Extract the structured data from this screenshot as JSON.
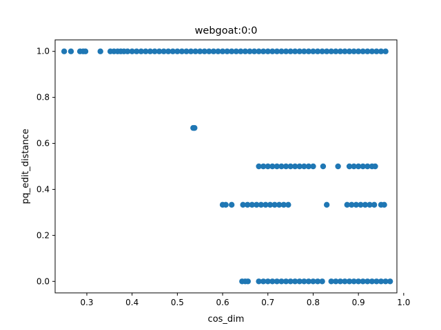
{
  "chart_data": {
    "type": "scatter",
    "title": "webgoat:0:0",
    "xlabel": "cos_dim",
    "ylabel": "pq_edit_distance",
    "xlim": [
      0.23,
      0.985
    ],
    "ylim": [
      -0.05,
      1.05
    ],
    "xticks": [
      "0.3",
      "0.4",
      "0.5",
      "0.6",
      "0.7",
      "0.8",
      "0.9",
      "1.0"
    ],
    "yticks": [
      "0.0",
      "0.2",
      "0.4",
      "0.6",
      "0.8",
      "1.0"
    ],
    "grid": false,
    "legend": "none",
    "marker_color": "#1f77b4",
    "series": [
      {
        "points": [
          [
            0.25,
            1.0
          ],
          [
            0.265,
            1.0
          ],
          [
            0.285,
            1.0
          ],
          [
            0.292,
            1.0
          ],
          [
            0.297,
            1.0
          ],
          [
            0.33,
            1.0
          ],
          [
            0.352,
            1.0
          ],
          [
            0.36,
            1.0
          ],
          [
            0.368,
            1.0
          ],
          [
            0.375,
            1.0
          ],
          [
            0.382,
            1.0
          ],
          [
            0.39,
            1.0
          ],
          [
            0.4,
            1.0
          ],
          [
            0.41,
            1.0
          ],
          [
            0.42,
            1.0
          ],
          [
            0.43,
            1.0
          ],
          [
            0.44,
            1.0
          ],
          [
            0.45,
            1.0
          ],
          [
            0.46,
            1.0
          ],
          [
            0.47,
            1.0
          ],
          [
            0.48,
            1.0
          ],
          [
            0.49,
            1.0
          ],
          [
            0.5,
            1.0
          ],
          [
            0.51,
            1.0
          ],
          [
            0.52,
            1.0
          ],
          [
            0.53,
            1.0
          ],
          [
            0.54,
            1.0
          ],
          [
            0.55,
            1.0
          ],
          [
            0.56,
            1.0
          ],
          [
            0.57,
            1.0
          ],
          [
            0.58,
            1.0
          ],
          [
            0.59,
            1.0
          ],
          [
            0.6,
            1.0
          ],
          [
            0.61,
            1.0
          ],
          [
            0.62,
            1.0
          ],
          [
            0.63,
            1.0
          ],
          [
            0.64,
            1.0
          ],
          [
            0.65,
            1.0
          ],
          [
            0.66,
            1.0
          ],
          [
            0.67,
            1.0
          ],
          [
            0.68,
            1.0
          ],
          [
            0.69,
            1.0
          ],
          [
            0.7,
            1.0
          ],
          [
            0.71,
            1.0
          ],
          [
            0.72,
            1.0
          ],
          [
            0.73,
            1.0
          ],
          [
            0.74,
            1.0
          ],
          [
            0.75,
            1.0
          ],
          [
            0.76,
            1.0
          ],
          [
            0.77,
            1.0
          ],
          [
            0.78,
            1.0
          ],
          [
            0.79,
            1.0
          ],
          [
            0.8,
            1.0
          ],
          [
            0.81,
            1.0
          ],
          [
            0.82,
            1.0
          ],
          [
            0.83,
            1.0
          ],
          [
            0.84,
            1.0
          ],
          [
            0.85,
            1.0
          ],
          [
            0.86,
            1.0
          ],
          [
            0.87,
            1.0
          ],
          [
            0.88,
            1.0
          ],
          [
            0.89,
            1.0
          ],
          [
            0.9,
            1.0
          ],
          [
            0.91,
            1.0
          ],
          [
            0.92,
            1.0
          ],
          [
            0.93,
            1.0
          ],
          [
            0.94,
            1.0
          ],
          [
            0.95,
            1.0
          ],
          [
            0.96,
            1.0
          ],
          [
            0.535,
            0.667
          ],
          [
            0.538,
            0.667
          ],
          [
            0.68,
            0.5
          ],
          [
            0.69,
            0.5
          ],
          [
            0.7,
            0.5
          ],
          [
            0.71,
            0.5
          ],
          [
            0.72,
            0.5
          ],
          [
            0.73,
            0.5
          ],
          [
            0.74,
            0.5
          ],
          [
            0.75,
            0.5
          ],
          [
            0.76,
            0.5
          ],
          [
            0.77,
            0.5
          ],
          [
            0.78,
            0.5
          ],
          [
            0.79,
            0.5
          ],
          [
            0.8,
            0.5
          ],
          [
            0.822,
            0.5
          ],
          [
            0.855,
            0.5
          ],
          [
            0.88,
            0.5
          ],
          [
            0.89,
            0.5
          ],
          [
            0.9,
            0.5
          ],
          [
            0.91,
            0.5
          ],
          [
            0.92,
            0.5
          ],
          [
            0.93,
            0.5
          ],
          [
            0.937,
            0.5
          ],
          [
            0.6,
            0.333
          ],
          [
            0.607,
            0.333
          ],
          [
            0.62,
            0.333
          ],
          [
            0.645,
            0.333
          ],
          [
            0.655,
            0.333
          ],
          [
            0.665,
            0.333
          ],
          [
            0.675,
            0.333
          ],
          [
            0.685,
            0.333
          ],
          [
            0.695,
            0.333
          ],
          [
            0.705,
            0.333
          ],
          [
            0.715,
            0.333
          ],
          [
            0.725,
            0.333
          ],
          [
            0.735,
            0.333
          ],
          [
            0.745,
            0.333
          ],
          [
            0.83,
            0.333
          ],
          [
            0.875,
            0.333
          ],
          [
            0.885,
            0.333
          ],
          [
            0.895,
            0.333
          ],
          [
            0.905,
            0.333
          ],
          [
            0.915,
            0.333
          ],
          [
            0.925,
            0.333
          ],
          [
            0.935,
            0.333
          ],
          [
            0.95,
            0.333
          ],
          [
            0.957,
            0.333
          ],
          [
            0.643,
            0.0
          ],
          [
            0.65,
            0.0
          ],
          [
            0.656,
            0.0
          ],
          [
            0.68,
            0.0
          ],
          [
            0.69,
            0.0
          ],
          [
            0.7,
            0.0
          ],
          [
            0.71,
            0.0
          ],
          [
            0.72,
            0.0
          ],
          [
            0.73,
            0.0
          ],
          [
            0.74,
            0.0
          ],
          [
            0.75,
            0.0
          ],
          [
            0.76,
            0.0
          ],
          [
            0.77,
            0.0
          ],
          [
            0.78,
            0.0
          ],
          [
            0.79,
            0.0
          ],
          [
            0.8,
            0.0
          ],
          [
            0.81,
            0.0
          ],
          [
            0.82,
            0.0
          ],
          [
            0.84,
            0.0
          ],
          [
            0.85,
            0.0
          ],
          [
            0.86,
            0.0
          ],
          [
            0.87,
            0.0
          ],
          [
            0.88,
            0.0
          ],
          [
            0.89,
            0.0
          ],
          [
            0.9,
            0.0
          ],
          [
            0.91,
            0.0
          ],
          [
            0.92,
            0.0
          ],
          [
            0.93,
            0.0
          ],
          [
            0.94,
            0.0
          ],
          [
            0.95,
            0.0
          ],
          [
            0.96,
            0.0
          ],
          [
            0.97,
            0.0
          ]
        ]
      }
    ]
  }
}
